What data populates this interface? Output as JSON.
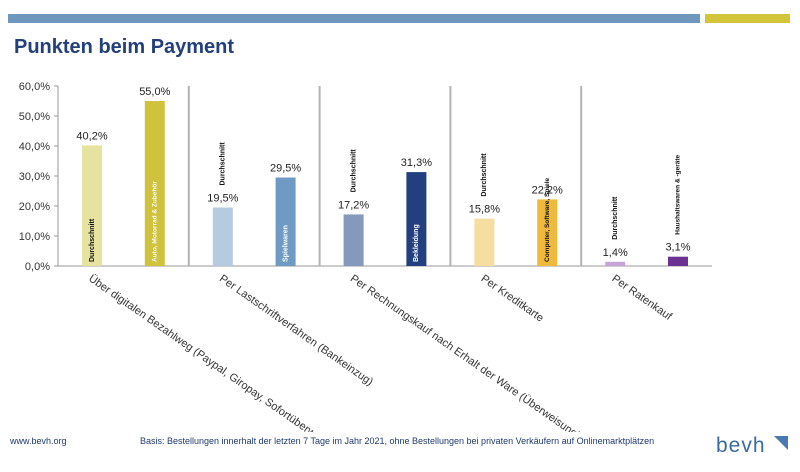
{
  "page": {
    "title": "Punkten beim Payment",
    "footer_url": "www.bevh.org",
    "footer_note": "Basis: Bestellungen innerhalt der letzten 7 Tage im Jahr 2021, ohne Bestellungen bei privaten Verkäufern auf Onlinemarktplätzen",
    "logo_text": "bevh"
  },
  "colors": {
    "band_blue": "#6f96bd",
    "band_olive": "#d2c53a",
    "title": "#24407a",
    "logo_mark": "#4a78b0"
  },
  "chart_data": {
    "type": "bar",
    "ylim": [
      0,
      60
    ],
    "yticks": [
      0,
      10,
      20,
      30,
      40,
      50,
      60
    ],
    "ytick_labels": [
      "0,0%",
      "10,0%",
      "20,0%",
      "30,0%",
      "40,0%",
      "50,0%",
      "60,0%"
    ],
    "grid": false,
    "groups": [
      {
        "label": "Über digitalen Bezahlweg (Paypal, Giropay, Sofortüberweisung)",
        "bars": [
          {
            "label": "Durchschnitt",
            "value": 40.2,
            "value_label": "40,2%",
            "color": "#e6e3a1"
          },
          {
            "label": "Auto, Motorrad & Zubehör",
            "value": 55.0,
            "value_label": "55,0%",
            "color": "#cfc33e"
          }
        ]
      },
      {
        "label": "Per Lastschriftverfahren (Bankeinzug)",
        "bars": [
          {
            "label": "Durchschnitt",
            "value": 19.5,
            "value_label": "19,5%",
            "color": "#b5cbe0"
          },
          {
            "label": "Spielwaren",
            "value": 29.5,
            "value_label": "29,5%",
            "color": "#6f9ac3"
          }
        ]
      },
      {
        "label": "Per Rechnungskauf nach Erhalt der Ware (Überweisung)",
        "bars": [
          {
            "label": "Durchschnitt",
            "value": 17.2,
            "value_label": "17,2%",
            "color": "#8599bd"
          },
          {
            "label": "Bekleidung",
            "value": 31.3,
            "value_label": "31,3%",
            "color": "#233f7f"
          }
        ]
      },
      {
        "label": "Per Kreditkarte",
        "bars": [
          {
            "label": "Durchschnitt",
            "value": 15.8,
            "value_label": "15,8%",
            "color": "#f5dea0"
          },
          {
            "label": "Computer, Software, Spiele",
            "value": 22.2,
            "value_label": "22,2%",
            "color": "#efb93c"
          }
        ]
      },
      {
        "label": "Per Ratenkauf",
        "bars": [
          {
            "label": "Durchschnitt",
            "value": 1.4,
            "value_label": "1,4%",
            "color": "#c8a3d8"
          },
          {
            "label": "Haushaltswaren & -geräte",
            "value": 3.1,
            "value_label": "3,1%",
            "color": "#6b3193"
          }
        ]
      }
    ]
  }
}
